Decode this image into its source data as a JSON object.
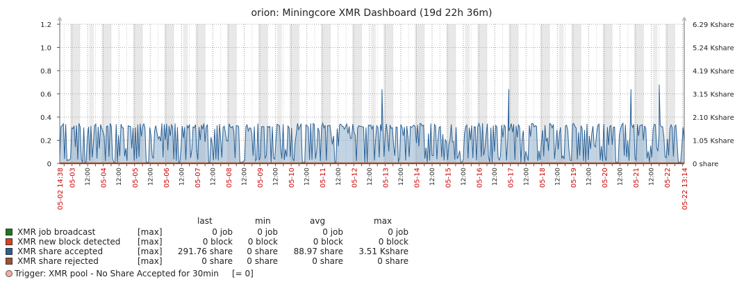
{
  "chart_data": {
    "type": "area",
    "title": "orion: Miningcore XMR Dashboard (19d 22h 36m)",
    "y_left": {
      "ticks": [
        "0",
        "0.2",
        "0.4",
        "0.6",
        "0.8",
        "1.0",
        "1.2"
      ],
      "ylim": [
        0,
        1.2
      ]
    },
    "y_right": {
      "ticks": [
        "0 share",
        "1.05 Kshare",
        "2.10 Kshare",
        "3.15 Kshare",
        "4.19 Kshare",
        "5.24 Kshare",
        "6.29 Kshare"
      ]
    },
    "x_start_label": "05-02 14:38",
    "x_end_label": "05-22 13:14",
    "x_days": [
      "05-03",
      "05-04",
      "05-05",
      "05-06",
      "05-07",
      "05-08",
      "05-09",
      "05-10",
      "05-11",
      "05-12",
      "05-13",
      "05-14",
      "05-15",
      "05-16",
      "05-17",
      "05-18",
      "05-19",
      "05-20",
      "05-21",
      "05-22"
    ],
    "x_noon_label": "12:00",
    "grid": true,
    "series": [
      {
        "name": "XMR job broadcast",
        "color": "#1a7a1a",
        "constant": 0
      },
      {
        "name": "XMR new block detected",
        "color": "#e0401a",
        "constant": 0
      },
      {
        "name": "XMR share accepted",
        "color": "#2a6096",
        "typical_high": 0.34,
        "typical_low": 0.02,
        "spikes": [
          [
            10.9,
            0.64
          ],
          [
            14.95,
            0.64
          ],
          [
            18.85,
            0.64
          ],
          [
            19.75,
            0.68
          ]
        ]
      },
      {
        "name": "XMR share rejected",
        "color": "#a0522d",
        "constant": 0
      }
    ]
  },
  "legend": {
    "headers": {
      "last": "last",
      "min": "min",
      "avg": "avg",
      "max": "max"
    },
    "rows": [
      {
        "name": "XMR job broadcast",
        "agg": "[max]",
        "last": "0 job",
        "min": "0 job",
        "avg": "0 job",
        "max": "0 job",
        "color": "#1a7a1a"
      },
      {
        "name": "XMR new block detected",
        "agg": "[max]",
        "last": "0 block",
        "min": "0 block",
        "avg": "0 block",
        "max": "0 block",
        "color": "#e0401a"
      },
      {
        "name": "XMR share accepted",
        "agg": "[max]",
        "last": "291.76 share",
        "min": "0 share",
        "avg": "88.97 share",
        "max": "3.51 Kshare",
        "color": "#2a6096"
      },
      {
        "name": "XMR share rejected",
        "agg": "[max]",
        "last": "0 share",
        "min": "0 share",
        "avg": "0 share",
        "max": "0 share",
        "color": "#a0522d"
      }
    ]
  },
  "trigger": {
    "label": "Trigger: XMR pool - No Share Accepted for 30min",
    "value": "[= 0]"
  }
}
